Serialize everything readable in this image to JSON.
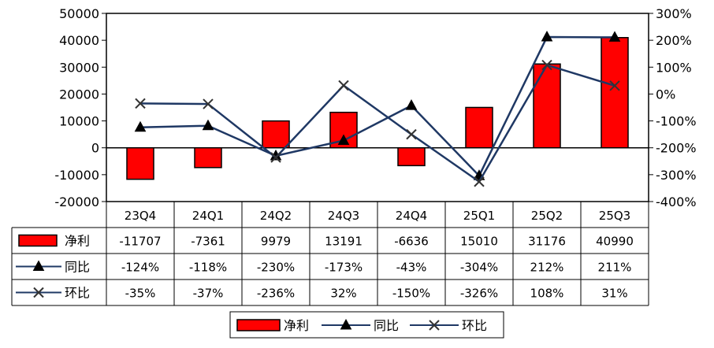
{
  "chart_data": {
    "type": "bar+line",
    "categories": [
      "23Q4",
      "24Q1",
      "24Q2",
      "24Q3",
      "24Q4",
      "25Q1",
      "25Q2",
      "25Q3"
    ],
    "series": [
      {
        "name": "净利",
        "kind": "bar",
        "axis": "left",
        "values": [
          -11707,
          -7361,
          9979,
          13191,
          -6636,
          15010,
          31176,
          40990
        ],
        "labels": [
          "-11707",
          "-7361",
          "9979",
          "13191",
          "-6636",
          "15010",
          "31176",
          "40990"
        ],
        "color": "#ff0000"
      },
      {
        "name": "同比",
        "kind": "line",
        "marker": "triangle",
        "axis": "right",
        "values": [
          -124,
          -118,
          -230,
          -173,
          -43,
          -304,
          212,
          211
        ],
        "labels": [
          "-124%",
          "-118%",
          "-230%",
          "-173%",
          "-43%",
          "-304%",
          "212%",
          "211%"
        ],
        "color": "#1f3864"
      },
      {
        "name": "环比",
        "kind": "line",
        "marker": "x",
        "axis": "right",
        "values": [
          -35,
          -37,
          -236,
          32,
          -150,
          -326,
          108,
          31
        ],
        "labels": [
          "-35%",
          "-37%",
          "-236%",
          "32%",
          "-150%",
          "-326%",
          "108%",
          "31%"
        ],
        "color": "#1f3864"
      }
    ],
    "y_left": {
      "min": -20000,
      "max": 50000,
      "ticks": [
        "-20000",
        "-10000",
        "0",
        "10000",
        "20000",
        "30000",
        "40000",
        "50000"
      ]
    },
    "y_right": {
      "min": -400,
      "max": 300,
      "ticks": [
        "-400%",
        "-300%",
        "-200%",
        "-100%",
        "0%",
        "100%",
        "200%",
        "300%"
      ]
    },
    "legend": {
      "position": "bottom-center",
      "entries": [
        "净利",
        "同比",
        "环比"
      ]
    },
    "grid": false,
    "data_table": true
  }
}
